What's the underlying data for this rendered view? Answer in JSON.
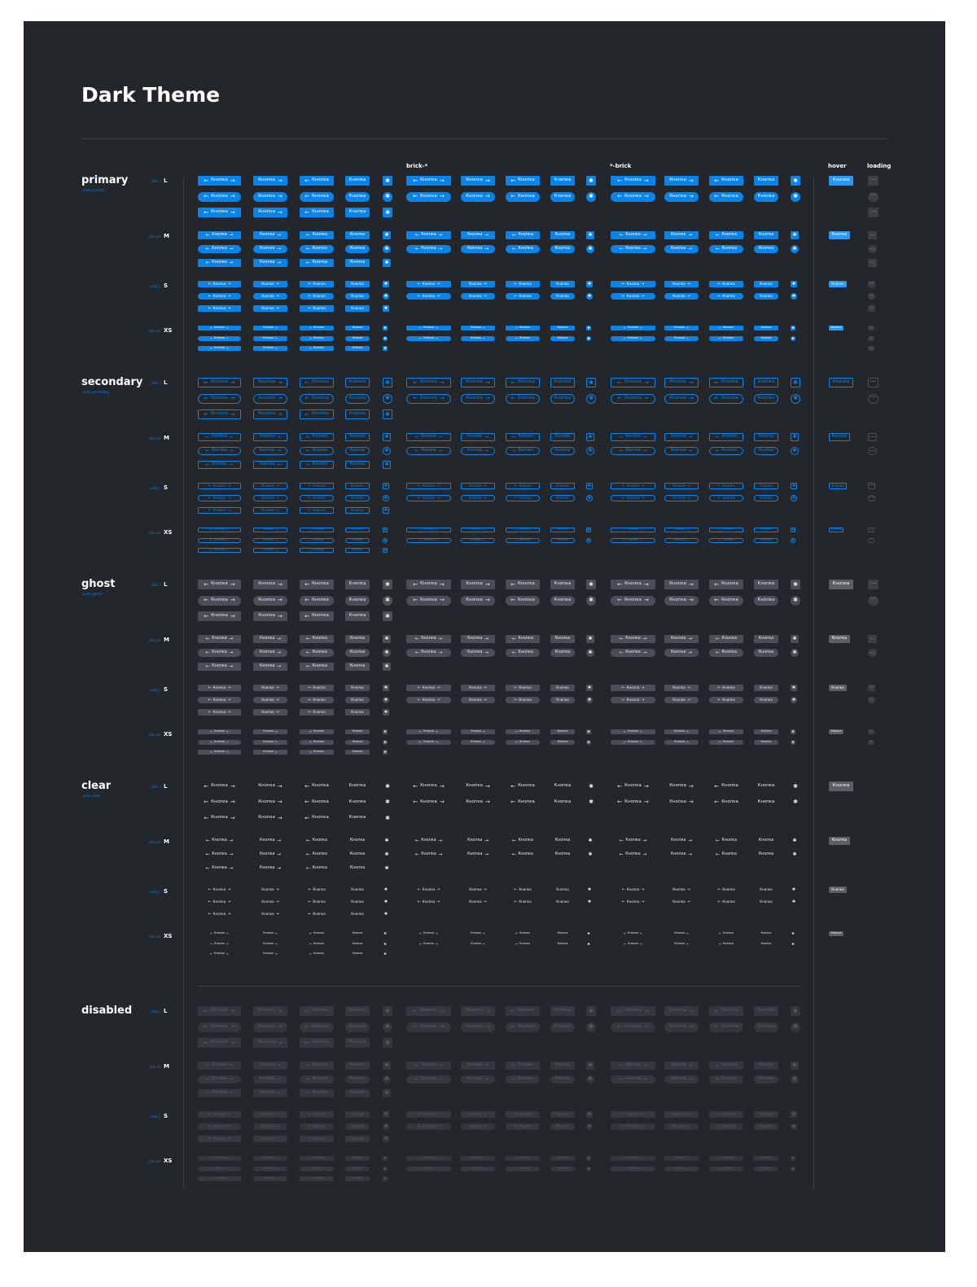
{
  "page": {
    "title": "Dark Theme",
    "button_label": "Кнопка",
    "loading_glyph": "•••",
    "icons": {
      "arrow_left": "←",
      "arrow_right": "→",
      "settings": "✱"
    }
  },
  "columns": {
    "brick_left": "brick-*",
    "brick_right": "*-brick",
    "hover": "hover",
    "loading": "loading"
  },
  "colors": {
    "frame_bg": "#23272c",
    "accent": "#0a84e8",
    "primary_fill": "#0a84e8",
    "ghost_fill": "#4a4f57",
    "disabled_fill": "#34383e",
    "disabled_text": "#5a5f66",
    "divider": "#3d424a"
  },
  "sections": [
    {
      "id": "primary",
      "label": "primary",
      "modifier": "_view_primary"
    },
    {
      "id": "secondary",
      "label": "secondary",
      "modifier": "_view_secondary"
    },
    {
      "id": "ghost",
      "label": "ghost",
      "modifier": "_view_ghost"
    },
    {
      "id": "clear",
      "label": "clear",
      "modifier": "_view_clear"
    },
    {
      "id": "disabled",
      "label": "disabled",
      "modifier": ""
    }
  ],
  "sizes": [
    {
      "id": "L",
      "letter": "L",
      "modifier": "_size_l"
    },
    {
      "id": "M",
      "letter": "M",
      "modifier": "_size_m"
    },
    {
      "id": "S",
      "letter": "S",
      "modifier": "_size_s"
    },
    {
      "id": "XS",
      "letter": "XS",
      "modifier": "_size_xs"
    }
  ]
}
